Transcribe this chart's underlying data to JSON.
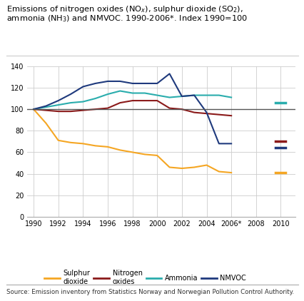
{
  "source": "Source: Emission inventory from Statistics Norway and Norwegian Pollution Control Authority.",
  "years_main": [
    1990,
    1991,
    1992,
    1993,
    1994,
    1995,
    1996,
    1997,
    1998,
    1999,
    2000,
    2001,
    2002,
    2003,
    2004,
    2005,
    2006
  ],
  "year_extra": 2010,
  "sulphur_dioxide": [
    100,
    87,
    71,
    69,
    68,
    66,
    65,
    62,
    60,
    58,
    57,
    46,
    45,
    46,
    48,
    42,
    41
  ],
  "sulphur_dioxide_2010": 41,
  "nitrogen_oxides": [
    100,
    99,
    98,
    98,
    99,
    100,
    101,
    106,
    108,
    108,
    108,
    101,
    100,
    97,
    96,
    95,
    94
  ],
  "nitrogen_oxides_2010": 70,
  "ammonia": [
    100,
    102,
    104,
    106,
    107,
    110,
    114,
    117,
    115,
    115,
    113,
    111,
    112,
    113,
    113,
    113,
    111
  ],
  "ammonia_2010": 106,
  "nmvoc": [
    100,
    103,
    108,
    114,
    121,
    124,
    126,
    126,
    124,
    124,
    124,
    133,
    112,
    113,
    97,
    68,
    68
  ],
  "nmvoc_2010": 64,
  "sulphur_color": "#F5A623",
  "nitrogen_color": "#8B1A1A",
  "ammonia_color": "#2AADAD",
  "nmvoc_color": "#1F3A7D",
  "reference_line_color": "#555555",
  "ylim": [
    0,
    140
  ],
  "yticks": [
    0,
    20,
    40,
    60,
    80,
    100,
    120,
    140
  ],
  "xticks_labels": [
    "1990",
    "1992",
    "1994",
    "1996",
    "1998",
    "2000",
    "2002",
    "2004",
    "2006*",
    "2008",
    "2010"
  ],
  "xticks_positions": [
    1990,
    1992,
    1994,
    1996,
    1998,
    2000,
    2002,
    2004,
    2006,
    2008,
    2010
  ],
  "xlim": [
    1989.5,
    2011.2
  ]
}
